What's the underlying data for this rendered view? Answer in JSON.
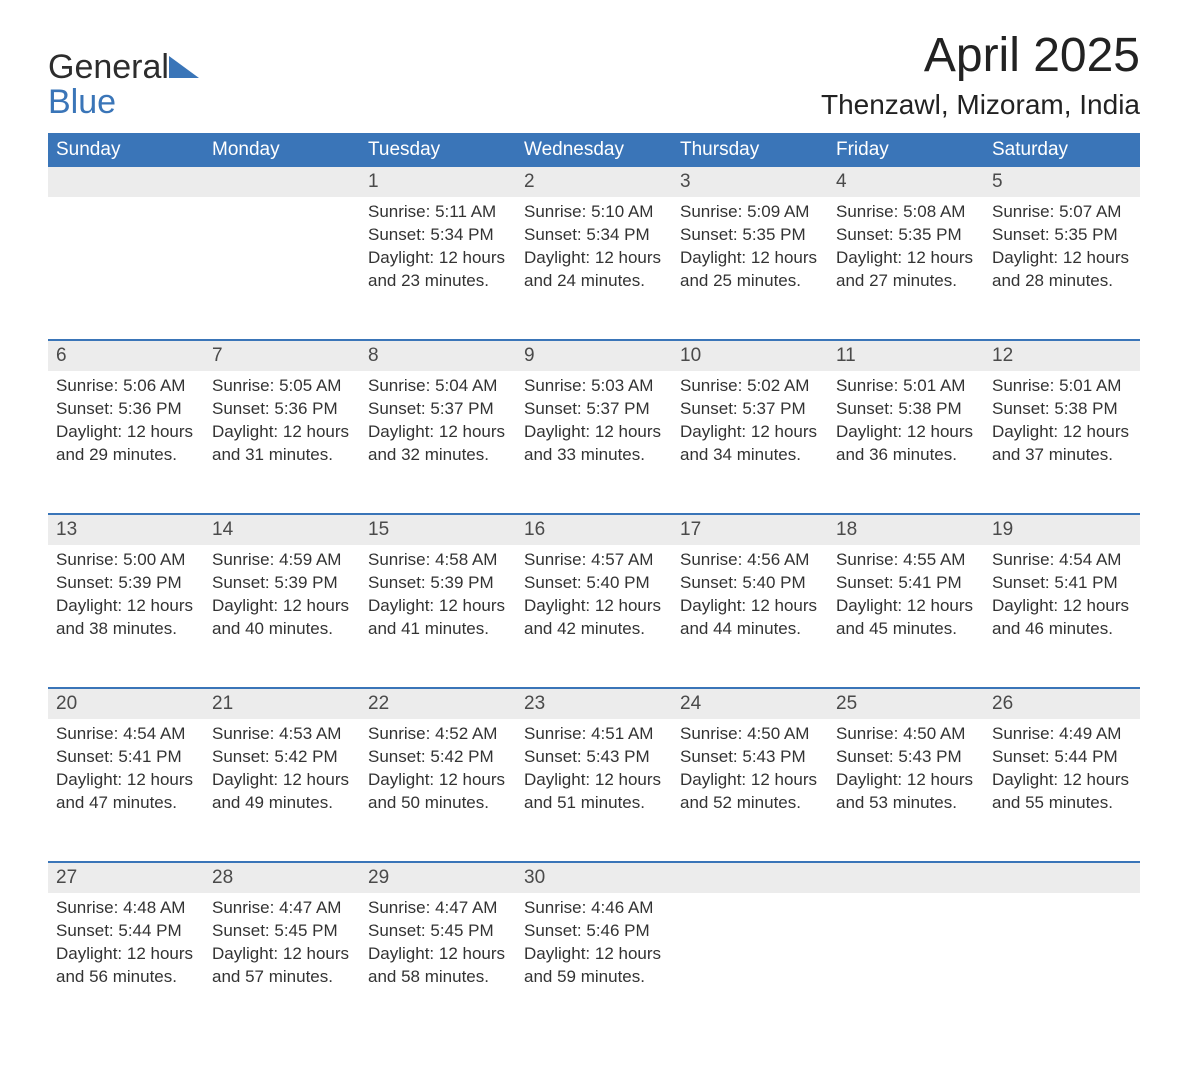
{
  "brand": {
    "name_line1": "General",
    "name_line2": "Blue",
    "logo_fill": "#3a75b8"
  },
  "title": "April 2025",
  "location": "Thenzawl, Mizoram, India",
  "colors": {
    "header_bg": "#3a75b8",
    "daynum_bg": "#ececec",
    "text": "#333333",
    "background": "#ffffff"
  },
  "day_headers": [
    "Sunday",
    "Monday",
    "Tuesday",
    "Wednesday",
    "Thursday",
    "Friday",
    "Saturday"
  ],
  "weeks": [
    [
      null,
      null,
      {
        "n": "1",
        "sunrise": "5:11 AM",
        "sunset": "5:34 PM",
        "daylight": "12 hours and 23 minutes."
      },
      {
        "n": "2",
        "sunrise": "5:10 AM",
        "sunset": "5:34 PM",
        "daylight": "12 hours and 24 minutes."
      },
      {
        "n": "3",
        "sunrise": "5:09 AM",
        "sunset": "5:35 PM",
        "daylight": "12 hours and 25 minutes."
      },
      {
        "n": "4",
        "sunrise": "5:08 AM",
        "sunset": "5:35 PM",
        "daylight": "12 hours and 27 minutes."
      },
      {
        "n": "5",
        "sunrise": "5:07 AM",
        "sunset": "5:35 PM",
        "daylight": "12 hours and 28 minutes."
      }
    ],
    [
      {
        "n": "6",
        "sunrise": "5:06 AM",
        "sunset": "5:36 PM",
        "daylight": "12 hours and 29 minutes."
      },
      {
        "n": "7",
        "sunrise": "5:05 AM",
        "sunset": "5:36 PM",
        "daylight": "12 hours and 31 minutes."
      },
      {
        "n": "8",
        "sunrise": "5:04 AM",
        "sunset": "5:37 PM",
        "daylight": "12 hours and 32 minutes."
      },
      {
        "n": "9",
        "sunrise": "5:03 AM",
        "sunset": "5:37 PM",
        "daylight": "12 hours and 33 minutes."
      },
      {
        "n": "10",
        "sunrise": "5:02 AM",
        "sunset": "5:37 PM",
        "daylight": "12 hours and 34 minutes."
      },
      {
        "n": "11",
        "sunrise": "5:01 AM",
        "sunset": "5:38 PM",
        "daylight": "12 hours and 36 minutes."
      },
      {
        "n": "12",
        "sunrise": "5:01 AM",
        "sunset": "5:38 PM",
        "daylight": "12 hours and 37 minutes."
      }
    ],
    [
      {
        "n": "13",
        "sunrise": "5:00 AM",
        "sunset": "5:39 PM",
        "daylight": "12 hours and 38 minutes."
      },
      {
        "n": "14",
        "sunrise": "4:59 AM",
        "sunset": "5:39 PM",
        "daylight": "12 hours and 40 minutes."
      },
      {
        "n": "15",
        "sunrise": "4:58 AM",
        "sunset": "5:39 PM",
        "daylight": "12 hours and 41 minutes."
      },
      {
        "n": "16",
        "sunrise": "4:57 AM",
        "sunset": "5:40 PM",
        "daylight": "12 hours and 42 minutes."
      },
      {
        "n": "17",
        "sunrise": "4:56 AM",
        "sunset": "5:40 PM",
        "daylight": "12 hours and 44 minutes."
      },
      {
        "n": "18",
        "sunrise": "4:55 AM",
        "sunset": "5:41 PM",
        "daylight": "12 hours and 45 minutes."
      },
      {
        "n": "19",
        "sunrise": "4:54 AM",
        "sunset": "5:41 PM",
        "daylight": "12 hours and 46 minutes."
      }
    ],
    [
      {
        "n": "20",
        "sunrise": "4:54 AM",
        "sunset": "5:41 PM",
        "daylight": "12 hours and 47 minutes."
      },
      {
        "n": "21",
        "sunrise": "4:53 AM",
        "sunset": "5:42 PM",
        "daylight": "12 hours and 49 minutes."
      },
      {
        "n": "22",
        "sunrise": "4:52 AM",
        "sunset": "5:42 PM",
        "daylight": "12 hours and 50 minutes."
      },
      {
        "n": "23",
        "sunrise": "4:51 AM",
        "sunset": "5:43 PM",
        "daylight": "12 hours and 51 minutes."
      },
      {
        "n": "24",
        "sunrise": "4:50 AM",
        "sunset": "5:43 PM",
        "daylight": "12 hours and 52 minutes."
      },
      {
        "n": "25",
        "sunrise": "4:50 AM",
        "sunset": "5:43 PM",
        "daylight": "12 hours and 53 minutes."
      },
      {
        "n": "26",
        "sunrise": "4:49 AM",
        "sunset": "5:44 PM",
        "daylight": "12 hours and 55 minutes."
      }
    ],
    [
      {
        "n": "27",
        "sunrise": "4:48 AM",
        "sunset": "5:44 PM",
        "daylight": "12 hours and 56 minutes."
      },
      {
        "n": "28",
        "sunrise": "4:47 AM",
        "sunset": "5:45 PM",
        "daylight": "12 hours and 57 minutes."
      },
      {
        "n": "29",
        "sunrise": "4:47 AM",
        "sunset": "5:45 PM",
        "daylight": "12 hours and 58 minutes."
      },
      {
        "n": "30",
        "sunrise": "4:46 AM",
        "sunset": "5:46 PM",
        "daylight": "12 hours and 59 minutes."
      },
      null,
      null,
      null
    ]
  ],
  "labels": {
    "sunrise": "Sunrise: ",
    "sunset": "Sunset: ",
    "daylight": "Daylight: "
  }
}
